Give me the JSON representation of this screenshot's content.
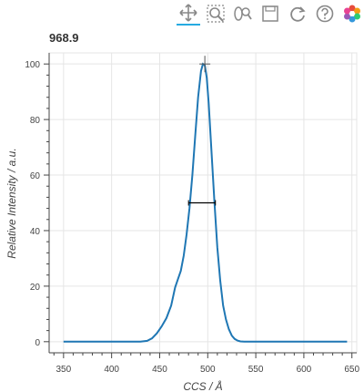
{
  "chart_data": {
    "type": "line",
    "title": "968.9",
    "xlabel": "CCS / Å",
    "ylabel": "Relative Intensity / a.u.",
    "xlim": [
      335,
      655
    ],
    "ylim": [
      -4,
      104
    ],
    "x_ticks": [
      350,
      400,
      450,
      500,
      550,
      600,
      650
    ],
    "y_ticks": [
      0,
      20,
      40,
      60,
      80,
      100
    ],
    "grid": true,
    "line_color": "#1f77b4",
    "series": [
      {
        "x": [
          350,
          380,
          410,
          430,
          437,
          442,
          447,
          452,
          457,
          462,
          466,
          469,
          472,
          475,
          478,
          481,
          484,
          487,
          490,
          493,
          495,
          497,
          499,
          501,
          504,
          507,
          510,
          513,
          516,
          519,
          522,
          525,
          528,
          531,
          534,
          538,
          543,
          550,
          570,
          600,
          645
        ],
        "y": [
          0,
          0,
          0,
          0,
          0.3,
          1.2,
          3,
          5.5,
          8.5,
          13,
          19.5,
          22.5,
          25.5,
          31,
          38.5,
          48,
          60,
          74,
          88,
          97.5,
          100,
          99.5,
          95,
          86,
          68,
          50,
          34,
          22,
          13,
          8,
          4.5,
          2.2,
          1,
          0.4,
          0.1,
          0,
          0,
          0,
          0,
          0,
          0
        ]
      }
    ],
    "peak_marker": {
      "x": 497,
      "y": 100
    },
    "fwhm_marker": {
      "x_start": 480,
      "x_end": 508,
      "y": 50
    }
  },
  "toolbar": {
    "tools": [
      "pan-icon",
      "box-zoom-icon",
      "wheel-zoom-icon",
      "save-icon",
      "reset-icon",
      "help-icon",
      "bokeh-logo-icon"
    ]
  }
}
